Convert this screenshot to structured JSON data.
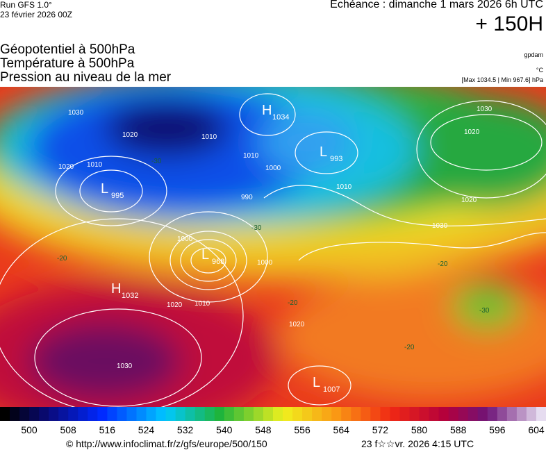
{
  "header": {
    "run": "Run GFS 1.0°",
    "date": "23 février 2026 00Z",
    "echeance": "Echéance : dimanche 1 mars 2026 6h UTC",
    "horizon": "+ 150H",
    "fields": [
      "Géopotentiel à 500hPa",
      "Température à 500hPa",
      "Pression au niveau de la mer"
    ],
    "units": [
      "gpdam",
      "°C"
    ],
    "extremes": "[Max 1034.5 | Min 967.6] hPa"
  },
  "map": {
    "centers": [
      {
        "symbol": "H",
        "value": 1034
      },
      {
        "symbol": "L",
        "value": 993
      },
      {
        "symbol": "L",
        "value": 995
      },
      {
        "symbol": "L",
        "value": 968
      },
      {
        "symbol": "H",
        "value": 1032
      },
      {
        "symbol": "L",
        "value": 1007
      }
    ],
    "isobars": [
      1030,
      1020,
      1020,
      1010,
      1010,
      1010,
      1000,
      990,
      1000,
      1000,
      1010,
      1020,
      1030,
      1030,
      1020,
      1020,
      1030,
      1010,
      1020
    ],
    "temperatures": [
      -30,
      -30,
      -20,
      -20,
      -20,
      -30,
      -20
    ]
  },
  "legend": {
    "ticks": [
      500,
      508,
      516,
      524,
      532,
      540,
      548,
      556,
      564,
      572,
      580,
      588,
      596,
      604
    ]
  },
  "footer": {
    "source": "© http://www.infoclimat.fr/z/gfs/europe/500/150",
    "generated": "23 f☆☆vr. 2026  4:15 UTC"
  }
}
